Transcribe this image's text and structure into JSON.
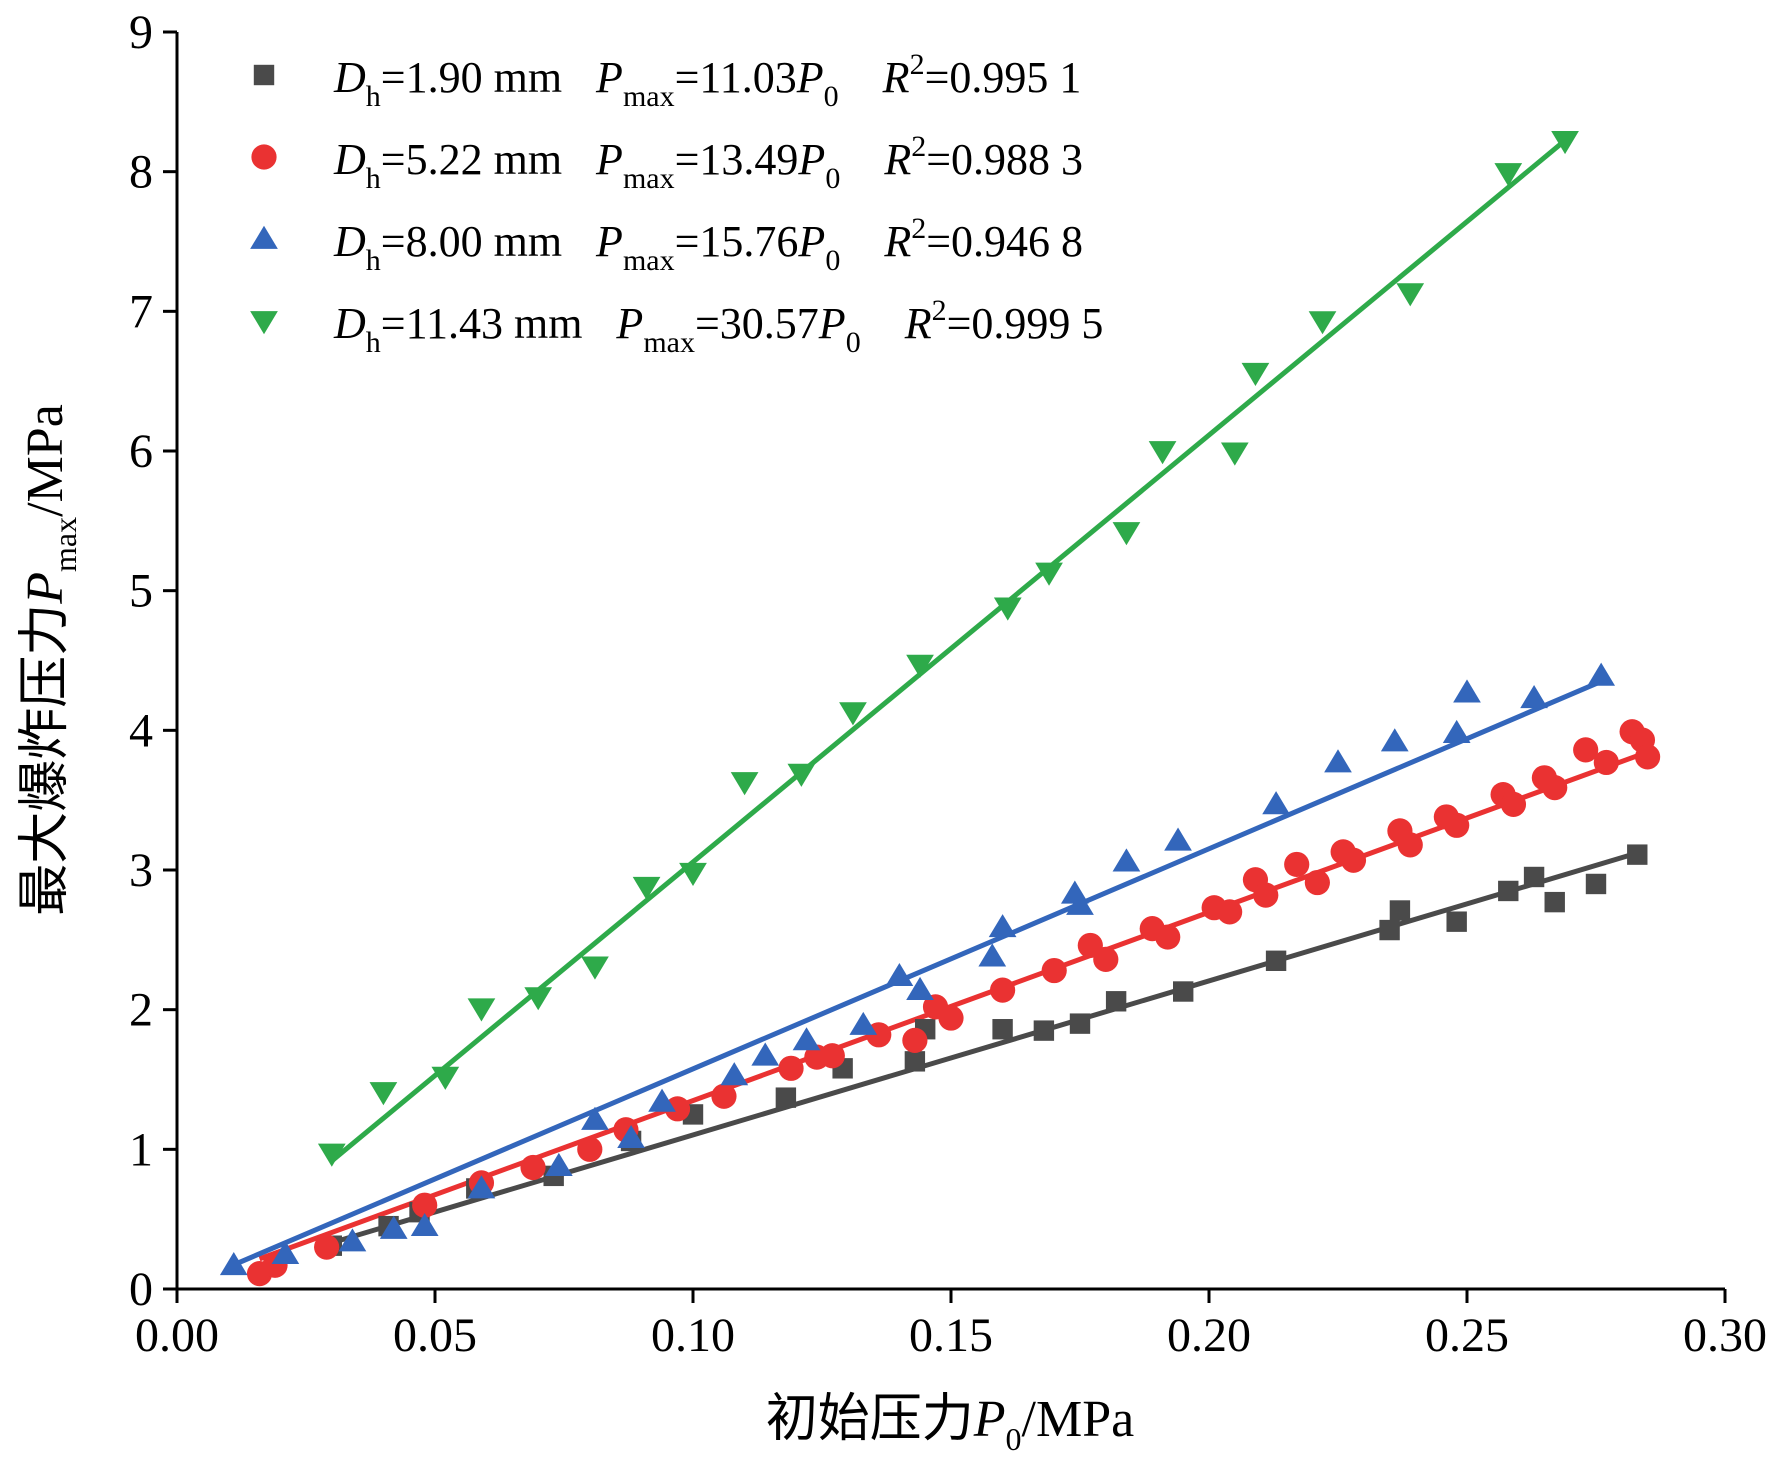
{
  "chart_data": {
    "type": "scatter",
    "xlabel": {
      "prefix": "初始压力",
      "var": "P",
      "sub": "0",
      "unit": "/MPa"
    },
    "ylabel": {
      "prefix": "最大爆炸压力",
      "var": "P",
      "sub": "max",
      "unit": "/MPa"
    },
    "xlim": [
      0,
      0.3
    ],
    "ylim": [
      0,
      9
    ],
    "x_ticks": [
      "0.00",
      "0.05",
      "0.10",
      "0.15",
      "0.20",
      "0.25",
      "0.30"
    ],
    "y_ticks": [
      "0",
      "1",
      "2",
      "3",
      "4",
      "5",
      "6",
      "7",
      "8",
      "9"
    ],
    "legend_position": "top-left",
    "series": [
      {
        "color": "#4a4a4a",
        "marker": "square",
        "legend": {
          "var": "D",
          "var_sub": "h",
          "d_value": "=1.90 mm",
          "p_var": "P",
          "p_sub": "max",
          "coef": "=11.03",
          "p0_var": "P",
          "p0_sub": "0",
          "r_var": "R",
          "r_sup": "2",
          "r_value": "=0.995 1"
        },
        "fit": {
          "slope": 11.03,
          "x_range": [
            0.03,
            0.283
          ]
        },
        "points": [
          [
            0.03,
            0.31
          ],
          [
            0.041,
            0.45
          ],
          [
            0.047,
            0.55
          ],
          [
            0.058,
            0.72
          ],
          [
            0.073,
            0.81
          ],
          [
            0.088,
            1.06
          ],
          [
            0.1,
            1.25
          ],
          [
            0.118,
            1.37
          ],
          [
            0.129,
            1.58
          ],
          [
            0.143,
            1.63
          ],
          [
            0.145,
            1.86
          ],
          [
            0.16,
            1.86
          ],
          [
            0.168,
            1.85
          ],
          [
            0.175,
            1.9
          ],
          [
            0.182,
            2.06
          ],
          [
            0.195,
            2.13
          ],
          [
            0.213,
            2.35
          ],
          [
            0.235,
            2.57
          ],
          [
            0.237,
            2.71
          ],
          [
            0.248,
            2.63
          ],
          [
            0.258,
            2.85
          ],
          [
            0.263,
            2.95
          ],
          [
            0.267,
            2.77
          ],
          [
            0.275,
            2.9
          ],
          [
            0.283,
            3.11
          ]
        ]
      },
      {
        "color": "#ea3232",
        "marker": "circle",
        "legend": {
          "var": "D",
          "var_sub": "h",
          "d_value": "=5.22 mm",
          "p_var": "P",
          "p_sub": "max",
          "coef": "=13.49",
          "p0_var": "P",
          "p0_sub": "0",
          "r_var": "R",
          "r_sup": "2",
          "r_value": "=0.988 3"
        },
        "fit": {
          "slope": 13.49,
          "x_range": [
            0.016,
            0.284
          ]
        },
        "points": [
          [
            0.016,
            0.11
          ],
          [
            0.019,
            0.17
          ],
          [
            0.029,
            0.3
          ],
          [
            0.048,
            0.6
          ],
          [
            0.059,
            0.76
          ],
          [
            0.069,
            0.87
          ],
          [
            0.08,
            1.0
          ],
          [
            0.087,
            1.14
          ],
          [
            0.097,
            1.29
          ],
          [
            0.106,
            1.38
          ],
          [
            0.119,
            1.58
          ],
          [
            0.124,
            1.66
          ],
          [
            0.127,
            1.67
          ],
          [
            0.136,
            1.82
          ],
          [
            0.143,
            1.78
          ],
          [
            0.147,
            2.02
          ],
          [
            0.15,
            1.94
          ],
          [
            0.16,
            2.14
          ],
          [
            0.17,
            2.28
          ],
          [
            0.177,
            2.46
          ],
          [
            0.18,
            2.36
          ],
          [
            0.189,
            2.58
          ],
          [
            0.192,
            2.52
          ],
          [
            0.201,
            2.73
          ],
          [
            0.204,
            2.7
          ],
          [
            0.209,
            2.93
          ],
          [
            0.211,
            2.82
          ],
          [
            0.217,
            3.04
          ],
          [
            0.221,
            2.91
          ],
          [
            0.226,
            3.13
          ],
          [
            0.228,
            3.07
          ],
          [
            0.237,
            3.28
          ],
          [
            0.239,
            3.18
          ],
          [
            0.246,
            3.38
          ],
          [
            0.248,
            3.32
          ],
          [
            0.257,
            3.54
          ],
          [
            0.259,
            3.47
          ],
          [
            0.265,
            3.66
          ],
          [
            0.267,
            3.59
          ],
          [
            0.273,
            3.86
          ],
          [
            0.277,
            3.77
          ],
          [
            0.282,
            3.99
          ],
          [
            0.284,
            3.93
          ],
          [
            0.285,
            3.81
          ]
        ]
      },
      {
        "color": "#3366bb",
        "marker": "triangle-up",
        "legend": {
          "var": "D",
          "var_sub": "h",
          "d_value": "=8.00 mm",
          "p_var": "P",
          "p_sub": "max",
          "coef": "=15.76",
          "p0_var": "P",
          "p0_sub": "0",
          "r_var": "R",
          "r_sup": "2",
          "r_value": "=0.946 8"
        },
        "fit": {
          "slope": 15.76,
          "x_range": [
            0.011,
            0.276
          ]
        },
        "points": [
          [
            0.011,
            0.17
          ],
          [
            0.021,
            0.25
          ],
          [
            0.034,
            0.34
          ],
          [
            0.042,
            0.43
          ],
          [
            0.048,
            0.45
          ],
          [
            0.059,
            0.72
          ],
          [
            0.074,
            0.88
          ],
          [
            0.081,
            1.21
          ],
          [
            0.088,
            1.08
          ],
          [
            0.094,
            1.34
          ],
          [
            0.108,
            1.53
          ],
          [
            0.114,
            1.67
          ],
          [
            0.122,
            1.78
          ],
          [
            0.133,
            1.89
          ],
          [
            0.14,
            2.24
          ],
          [
            0.144,
            2.14
          ],
          [
            0.158,
            2.38
          ],
          [
            0.16,
            2.59
          ],
          [
            0.174,
            2.83
          ],
          [
            0.175,
            2.75
          ],
          [
            0.184,
            3.06
          ],
          [
            0.194,
            3.21
          ],
          [
            0.213,
            3.47
          ],
          [
            0.225,
            3.77
          ],
          [
            0.236,
            3.92
          ],
          [
            0.248,
            3.98
          ],
          [
            0.25,
            4.27
          ],
          [
            0.263,
            4.23
          ],
          [
            0.276,
            4.39
          ]
        ]
      },
      {
        "color": "#2eaa4a",
        "marker": "triangle-down",
        "legend": {
          "var": "D",
          "var_sub": "h",
          "d_value": "=11.43 mm",
          "p_var": "P",
          "p_sub": "max",
          "coef": "=30.57",
          "p0_var": "P",
          "p0_sub": "0",
          "r_var": "R",
          "r_sup": "2",
          "r_value": "=0.999 5"
        },
        "fit": {
          "slope": 30.57,
          "x_range": [
            0.03,
            0.269
          ]
        },
        "points": [
          [
            0.03,
            0.97
          ],
          [
            0.04,
            1.41
          ],
          [
            0.052,
            1.52
          ],
          [
            0.059,
            2.01
          ],
          [
            0.07,
            2.09
          ],
          [
            0.081,
            2.31
          ],
          [
            0.091,
            2.88
          ],
          [
            0.1,
            2.98
          ],
          [
            0.11,
            3.63
          ],
          [
            0.121,
            3.69
          ],
          [
            0.131,
            4.13
          ],
          [
            0.144,
            4.47
          ],
          [
            0.161,
            4.88
          ],
          [
            0.169,
            5.13
          ],
          [
            0.184,
            5.42
          ],
          [
            0.191,
            6.0
          ],
          [
            0.205,
            5.99
          ],
          [
            0.209,
            6.56
          ],
          [
            0.222,
            6.93
          ],
          [
            0.239,
            7.13
          ],
          [
            0.258,
            7.99
          ],
          [
            0.269,
            8.22
          ]
        ]
      }
    ]
  }
}
